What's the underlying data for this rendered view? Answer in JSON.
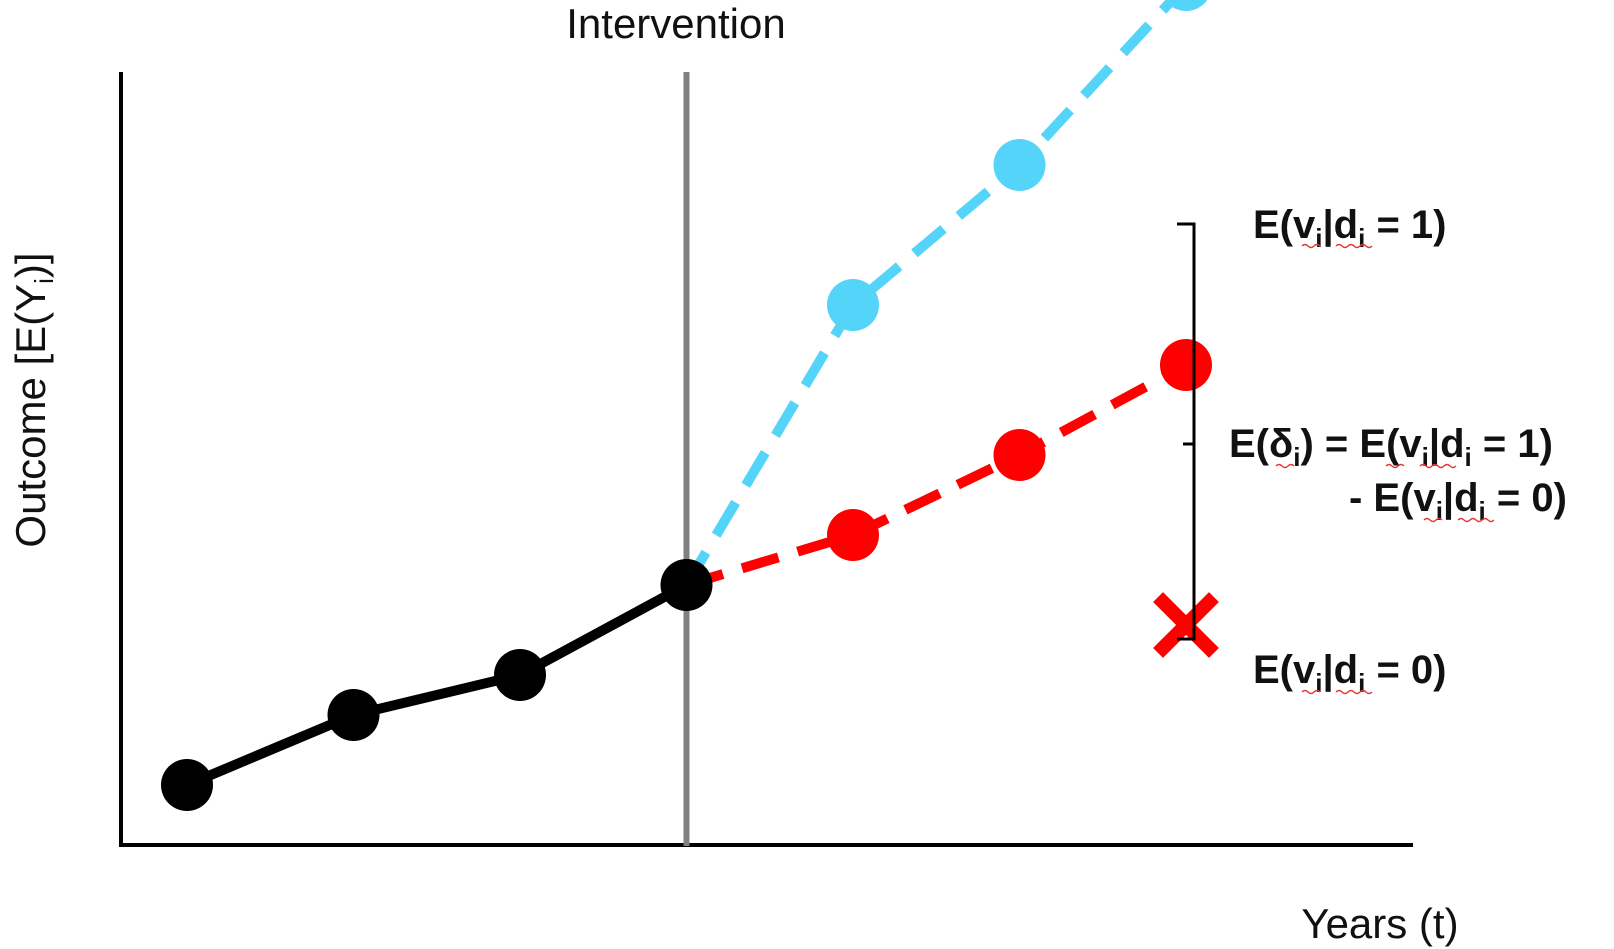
{
  "title": "Intervention",
  "y_axis": {
    "label": "Outcome [E(Y",
    "sub": "i",
    "close": ")]"
  },
  "x_axis": {
    "label": "Years (t)"
  },
  "colors": {
    "pre": "#000000",
    "treated": "#55d4fa",
    "untreated": "#ff0000",
    "intervention_line": "#808080",
    "axis": "#000000"
  },
  "series": {
    "pre": [
      [
        0,
        0.06
      ],
      [
        1,
        0.13
      ],
      [
        2,
        0.17
      ],
      [
        3,
        0.26
      ]
    ],
    "treated": [
      [
        3,
        0.26
      ],
      [
        4,
        0.54
      ],
      [
        5,
        0.68
      ],
      [
        6,
        0.86
      ]
    ],
    "untreated": [
      [
        3,
        0.26
      ],
      [
        4,
        0.31
      ],
      [
        5,
        0.39
      ],
      [
        6,
        0.48
      ]
    ],
    "counterfactual_marker": [
      6,
      0.22
    ],
    "intervention_at": 3
  },
  "labels": {
    "treated": {
      "pre": "E(",
      "v": "v",
      "i1": "i",
      "mid": "|d",
      "i2": "i",
      "post": " = 1)"
    },
    "untreated": {
      "pre": "E(",
      "v": "v",
      "i1": "i",
      "mid": "|d",
      "i2": "i",
      "post": " = 0)"
    },
    "effect_line1": {
      "pre": "E(δ",
      "i0": "i",
      "mid": ") = E(",
      "v": "v",
      "i1": "i",
      "mid2": "|d",
      "i2": "i",
      "post": " = 1)"
    },
    "effect_line2": {
      "pre": "- E(",
      "v": "v",
      "i1": "i",
      "mid": "|d",
      "i2": "i",
      "post": " = 0)"
    }
  }
}
